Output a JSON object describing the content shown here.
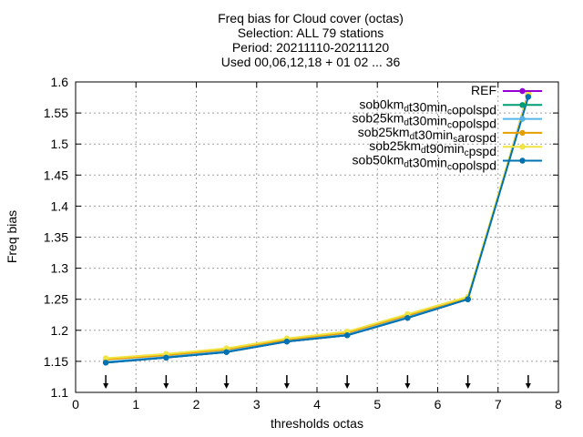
{
  "chart_data": {
    "type": "line",
    "title_lines": [
      "Freq bias  for Cloud cover (octas)",
      "Selection: ALL     79 stations",
      "Period: 20211110-20211120",
      "Used 00,06,12,18 + 01 02 ... 36"
    ],
    "xlabel": "thresholds octas",
    "ylabel": "Freq bias",
    "xlim": [
      0,
      8
    ],
    "ylim": [
      1.1,
      1.6
    ],
    "xticks": [
      0,
      1,
      2,
      3,
      4,
      5,
      6,
      7,
      8
    ],
    "yticks": [
      1.1,
      1.15,
      1.2,
      1.25,
      1.3,
      1.35,
      1.4,
      1.45,
      1.5,
      1.55,
      1.6
    ],
    "grid": true,
    "legend_position": "top-right",
    "x": [
      0.5,
      1.5,
      2.5,
      3.5,
      4.5,
      5.5,
      6.5,
      7.5
    ],
    "arrow_markers_at": [
      0.5,
      1.5,
      2.5,
      3.5,
      4.5,
      5.5,
      6.5,
      7.5
    ],
    "series": [
      {
        "name": "REF",
        "legend_parts": [
          [
            "REF",
            ""
          ]
        ],
        "color": "#9400d3",
        "values": [
          1.148,
          1.156,
          1.165,
          1.182,
          1.192,
          1.22,
          1.25,
          1.582
        ]
      },
      {
        "name": "sob0km_d t30min_c opolspd",
        "legend_parts": [
          [
            "sob0km",
            ""
          ],
          [
            "d",
            "sub"
          ],
          [
            "t30min",
            ""
          ],
          [
            "c",
            "sub"
          ],
          [
            "opolspd",
            ""
          ]
        ],
        "color": "#009e73",
        "values": [
          1.148,
          1.156,
          1.165,
          1.182,
          1.192,
          1.22,
          1.25,
          1.578
        ]
      },
      {
        "name": "sob25km_d t30min_c opolspd",
        "legend_parts": [
          [
            "sob25km",
            ""
          ],
          [
            "d",
            "sub"
          ],
          [
            "t30min",
            ""
          ],
          [
            "c",
            "sub"
          ],
          [
            "opolspd",
            ""
          ]
        ],
        "color": "#56b4e9",
        "values": [
          1.149,
          1.157,
          1.166,
          1.183,
          1.193,
          1.221,
          1.251,
          1.577
        ]
      },
      {
        "name": "sob25km_d t30min_s arospd",
        "legend_parts": [
          [
            "sob25km",
            ""
          ],
          [
            "d",
            "sub"
          ],
          [
            "t30min",
            ""
          ],
          [
            "s",
            "sub"
          ],
          [
            "arospd",
            ""
          ]
        ],
        "color": "#e69f00",
        "values": [
          1.153,
          1.16,
          1.169,
          1.185,
          1.196,
          1.224,
          1.253,
          1.578
        ]
      },
      {
        "name": "sob25km_d t90min_c pspd",
        "legend_parts": [
          [
            "sob25km",
            ""
          ],
          [
            "d",
            "sub"
          ],
          [
            "t90min",
            ""
          ],
          [
            "c",
            "sub"
          ],
          [
            "pspd",
            ""
          ]
        ],
        "color": "#f0e442",
        "values": [
          1.155,
          1.162,
          1.171,
          1.187,
          1.198,
          1.226,
          1.254,
          1.581
        ]
      },
      {
        "name": "sob50km_d t30min_c opolspd",
        "legend_parts": [
          [
            "sob50km",
            ""
          ],
          [
            "d",
            "sub"
          ],
          [
            "t30min",
            ""
          ],
          [
            "c",
            "sub"
          ],
          [
            "opolspd",
            ""
          ]
        ],
        "color": "#0072b2",
        "values": [
          1.148,
          1.156,
          1.165,
          1.182,
          1.192,
          1.22,
          1.25,
          1.576
        ]
      }
    ]
  }
}
